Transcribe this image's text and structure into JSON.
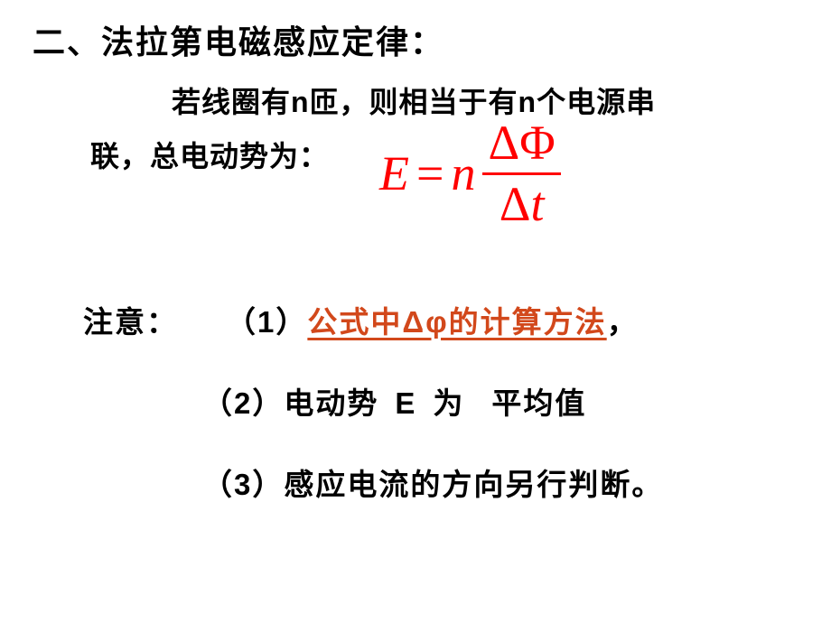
{
  "title": "二、法拉第电磁感应定律：",
  "body": {
    "line1": "若线圈有n匝，则相当于有n个电源串",
    "line2": "联，总电动势为："
  },
  "formula": {
    "lhs": "E",
    "eq": "=",
    "coef": "n",
    "num_delta": "Δ",
    "num_phi": "Φ",
    "den_delta": "Δ",
    "den_t": "t",
    "color": "#ff0000",
    "fontsize": 54
  },
  "notes": {
    "label": "注意：",
    "item1_prefix": "（1）",
    "item1_red": "公式中Δφ的计算方法",
    "item1_suffix": "，",
    "item2_prefix": "（2）",
    "item2_a": "电动势",
    "item2_b": "E",
    "item2_c": "为",
    "item2_d": "平均值",
    "item3": "（3）感应电流的方向另行判断。"
  },
  "colors": {
    "text": "#000000",
    "highlight": "#d2481b",
    "formula": "#ff0000",
    "background": "#ffffff"
  },
  "typography": {
    "title_fontsize": 36,
    "body_fontsize": 32,
    "notes_fontsize": 33,
    "weight": "900"
  }
}
